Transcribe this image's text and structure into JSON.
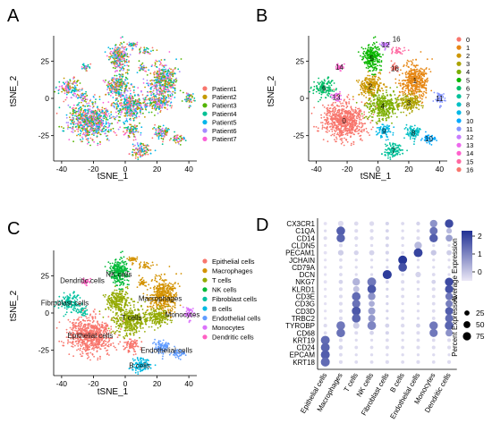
{
  "panels": {
    "A": {
      "letter": "A",
      "chart_data": {
        "type": "scatter",
        "xlabel": "tSNE_1",
        "ylabel": "tSNE_2",
        "xticks": [
          -40,
          -20,
          0,
          20,
          40
        ],
        "yticks": [
          -25,
          0,
          25
        ],
        "xlim": [
          -45,
          45
        ],
        "ylim": [
          -42,
          42
        ],
        "legend_title": "",
        "legend_position": "right",
        "series": [
          {
            "name": "Patient1",
            "color": "#F8766D"
          },
          {
            "name": "Patient2",
            "color": "#C49A00"
          },
          {
            "name": "Patient3",
            "color": "#53B400"
          },
          {
            "name": "Patient4",
            "color": "#00C094"
          },
          {
            "name": "Patient5",
            "color": "#00B6EB"
          },
          {
            "name": "Patient6",
            "color": "#A58AFF"
          },
          {
            "name": "Patient7",
            "color": "#FB61D7"
          }
        ]
      }
    },
    "B": {
      "letter": "B",
      "chart_data": {
        "type": "scatter",
        "xlabel": "tSNE_1",
        "ylabel": "tSNE_2",
        "xticks": [
          -40,
          -20,
          0,
          20,
          40
        ],
        "yticks": [
          -25,
          0,
          25
        ],
        "xlim": [
          -45,
          45
        ],
        "ylim": [
          -42,
          42
        ],
        "legend_position": "right",
        "series": [
          {
            "name": "0",
            "color": "#F8766D",
            "center": [
              -22,
              -15
            ]
          },
          {
            "name": "1",
            "color": "#E68613",
            "center": [
              24,
              12
            ]
          },
          {
            "name": "2",
            "color": "#CD9600",
            "center": [
              -5,
              8
            ]
          },
          {
            "name": "3",
            "color": "#ABA300",
            "center": [
              20,
              -3
            ]
          },
          {
            "name": "4",
            "color": "#7CAE00",
            "center": [
              3,
              -5
            ]
          },
          {
            "name": "5",
            "color": "#0CB702",
            "center": [
              -4,
              27
            ]
          },
          {
            "name": "6",
            "color": "#00BE67",
            "center": [
              -35,
              7
            ]
          },
          {
            "name": "7",
            "color": "#00C19A",
            "center": [
              10,
              -35
            ]
          },
          {
            "name": "8",
            "color": "#00BFC4",
            "center": [
              23,
              -23
            ]
          },
          {
            "name": "9",
            "color": "#00B8E7",
            "center": [
              4,
              -22
            ]
          },
          {
            "name": "10",
            "color": "#00A9FF",
            "center": [
              33,
              -27
            ]
          },
          {
            "name": "11",
            "color": "#8494FF",
            "center": [
              40,
              0
            ]
          },
          {
            "name": "12",
            "color": "#C77CFF",
            "center": [
              5,
              36
            ]
          },
          {
            "name": "13",
            "color": "#ED68ED",
            "center": [
              -27,
              1
            ]
          },
          {
            "name": "14",
            "color": "#FF61CC",
            "center": [
              -25,
              21
            ]
          },
          {
            "name": "15",
            "color": "#FF68A1",
            "center": [
              14,
              32
            ]
          },
          {
            "name": "16",
            "color": "#F8766D",
            "center": [
              11,
              20
            ]
          }
        ],
        "annotations": [
          {
            "text": "16",
            "at": [
              12,
              40
            ]
          },
          {
            "text": "12",
            "at": [
              5,
              36
            ]
          }
        ]
      }
    },
    "C": {
      "letter": "C",
      "chart_data": {
        "type": "scatter",
        "xlabel": "tSNE_1",
        "ylabel": "tSNE_2",
        "xticks": [
          -40,
          -20,
          0,
          20,
          40
        ],
        "yticks": [
          -25,
          0,
          25
        ],
        "xlim": [
          -45,
          45
        ],
        "ylim": [
          -42,
          42
        ],
        "legend_position": "right",
        "series": [
          {
            "name": "Epithelial cells",
            "color": "#F8766D",
            "center": [
              -22,
              -15
            ],
            "label_at": [
              -22,
              -15
            ]
          },
          {
            "name": "Macrophages",
            "color": "#D39200",
            "center": [
              24,
              12
            ],
            "label_at": [
              22,
              10
            ]
          },
          {
            "name": "T cells",
            "color": "#93AA00",
            "center": [
              3,
              -3
            ],
            "label_at": [
              4,
              -3
            ]
          },
          {
            "name": "NK cells",
            "color": "#00BA38",
            "center": [
              -4,
              27
            ],
            "label_at": [
              -4,
              26
            ]
          },
          {
            "name": "Fibroblast cells",
            "color": "#00C19F",
            "center": [
              -35,
              7
            ],
            "label_at": [
              -38,
              7
            ]
          },
          {
            "name": "B cells",
            "color": "#00B9E3",
            "center": [
              10,
              -35
            ],
            "label_at": [
              9,
              -35
            ]
          },
          {
            "name": "Endothelial cells",
            "color": "#619CFF",
            "center": [
              23,
              -23
            ],
            "label_at": [
              26,
              -25
            ]
          },
          {
            "name": "Monocytes",
            "color": "#DB72FB",
            "center": [
              40,
              0
            ],
            "label_at": [
              36,
              -1
            ]
          },
          {
            "name": "Dendritic cells",
            "color": "#FF61C3",
            "center": [
              -25,
              21
            ],
            "label_at": [
              -27,
              22
            ]
          }
        ]
      }
    },
    "D": {
      "letter": "D",
      "chart_data": {
        "type": "dotplot",
        "genes": [
          "CX3CR1",
          "C1QA",
          "CD14",
          "CLDN5",
          "PECAM1",
          "JCHAIN",
          "CD79A",
          "DCN",
          "NKG7",
          "KLRD1",
          "CD3E",
          "CD3G",
          "CD3D",
          "TRBC2",
          "TYROBP",
          "CD68",
          "KRT19",
          "CD24",
          "EPCAM",
          "KRT18"
        ],
        "cell_types": [
          "Epithelial cells",
          "Macrophages",
          "T cells",
          "NK cells",
          "Fibroblast cells",
          "B cells",
          "Endothelial cells",
          "Monocytes",
          "Dendritic cells"
        ],
        "legend": {
          "color_title": "Average Expression",
          "color_ticks": [
            2,
            1,
            0
          ],
          "color_range": [
            -0.5,
            2.3
          ],
          "size_title": "Percent Expressed",
          "size_ticks": [
            25,
            50,
            75
          ]
        },
        "expression": [
          [
            -0.4,
            -0.3,
            -0.3,
            -0.3,
            -0.2,
            -0.3,
            -0.2,
            0.8,
            1.9
          ],
          [
            -0.3,
            1.6,
            -0.3,
            -0.3,
            -0.2,
            -0.3,
            -0.3,
            1.3,
            0.2
          ],
          [
            -0.3,
            1.5,
            -0.3,
            -0.3,
            -0.2,
            -0.3,
            -0.3,
            1.6,
            0.6
          ],
          [
            -0.4,
            -0.3,
            -0.3,
            -0.3,
            -0.2,
            -0.3,
            0.2,
            -0.3,
            -0.3
          ],
          [
            -0.4,
            -0.1,
            -0.2,
            -0.2,
            -0.2,
            -0.3,
            2.0,
            0.0,
            -0.1
          ],
          [
            -0.4,
            -0.3,
            -0.3,
            -0.3,
            -0.2,
            2.2,
            -0.3,
            -0.3,
            -0.3
          ],
          [
            -0.4,
            -0.3,
            -0.3,
            -0.3,
            -0.2,
            1.8,
            -0.3,
            -0.3,
            -0.3
          ],
          [
            -0.4,
            -0.3,
            -0.3,
            -0.3,
            2.1,
            -0.3,
            -0.2,
            -0.3,
            -0.3
          ],
          [
            -0.4,
            -0.2,
            0.3,
            1.2,
            -0.2,
            -0.3,
            -0.3,
            -0.2,
            1.9
          ],
          [
            -0.4,
            -0.3,
            0.1,
            1.7,
            -0.2,
            -0.3,
            -0.3,
            -0.3,
            1.8
          ],
          [
            -0.4,
            -0.3,
            1.4,
            0.8,
            -0.2,
            -0.3,
            -0.3,
            -0.3,
            1.2
          ],
          [
            -0.4,
            -0.3,
            1.3,
            0.4,
            -0.2,
            -0.3,
            -0.3,
            -0.3,
            1.1
          ],
          [
            -0.4,
            -0.3,
            1.7,
            0.6,
            -0.2,
            -0.3,
            -0.3,
            -0.3,
            1.6
          ],
          [
            -0.4,
            -0.3,
            1.5,
            0.7,
            -0.2,
            -0.3,
            -0.3,
            -0.3,
            1.4
          ],
          [
            -0.3,
            1.2,
            -0.1,
            1.0,
            -0.2,
            -0.3,
            -0.2,
            1.2,
            1.5
          ],
          [
            -0.3,
            1.3,
            -0.3,
            -0.2,
            -0.2,
            -0.3,
            -0.3,
            1.2,
            0.8
          ],
          [
            1.4,
            -0.3,
            -0.3,
            -0.3,
            -0.3,
            -0.3,
            -0.3,
            -0.3,
            -0.3
          ],
          [
            1.5,
            -0.2,
            -0.3,
            -0.3,
            -0.3,
            -0.3,
            -0.3,
            -0.3,
            -0.3
          ],
          [
            1.6,
            -0.3,
            -0.3,
            -0.3,
            -0.3,
            -0.3,
            -0.3,
            -0.3,
            -0.3
          ],
          [
            1.4,
            -0.3,
            -0.3,
            -0.3,
            -0.3,
            -0.3,
            -0.3,
            -0.3,
            -0.3
          ]
        ],
        "percent": [
          [
            8,
            30,
            15,
            20,
            10,
            8,
            12,
            60,
            80
          ],
          [
            5,
            85,
            10,
            10,
            8,
            5,
            8,
            70,
            30
          ],
          [
            10,
            80,
            12,
            12,
            10,
            8,
            10,
            80,
            50
          ],
          [
            5,
            10,
            5,
            5,
            8,
            5,
            60,
            5,
            5
          ],
          [
            8,
            30,
            20,
            25,
            10,
            8,
            90,
            30,
            25
          ],
          [
            5,
            8,
            5,
            5,
            5,
            90,
            5,
            5,
            5
          ],
          [
            5,
            8,
            5,
            5,
            5,
            85,
            5,
            5,
            5
          ],
          [
            5,
            8,
            5,
            5,
            95,
            5,
            30,
            8,
            5
          ],
          [
            8,
            15,
            60,
            90,
            8,
            10,
            8,
            15,
            80
          ],
          [
            5,
            10,
            40,
            85,
            5,
            8,
            5,
            10,
            75
          ],
          [
            5,
            10,
            85,
            60,
            5,
            8,
            5,
            8,
            60
          ],
          [
            5,
            10,
            75,
            35,
            5,
            5,
            5,
            8,
            55
          ],
          [
            5,
            10,
            90,
            55,
            5,
            8,
            5,
            8,
            70
          ],
          [
            5,
            10,
            85,
            55,
            5,
            8,
            5,
            8,
            70
          ],
          [
            10,
            85,
            40,
            85,
            15,
            12,
            15,
            80,
            85
          ],
          [
            8,
            85,
            10,
            15,
            10,
            8,
            10,
            75,
            55
          ],
          [
            90,
            10,
            5,
            5,
            8,
            5,
            8,
            8,
            10
          ],
          [
            90,
            15,
            8,
            8,
            10,
            8,
            10,
            10,
            10
          ],
          [
            92,
            8,
            5,
            5,
            5,
            5,
            5,
            5,
            5
          ],
          [
            92,
            10,
            8,
            8,
            10,
            8,
            10,
            8,
            10
          ]
        ]
      }
    }
  }
}
